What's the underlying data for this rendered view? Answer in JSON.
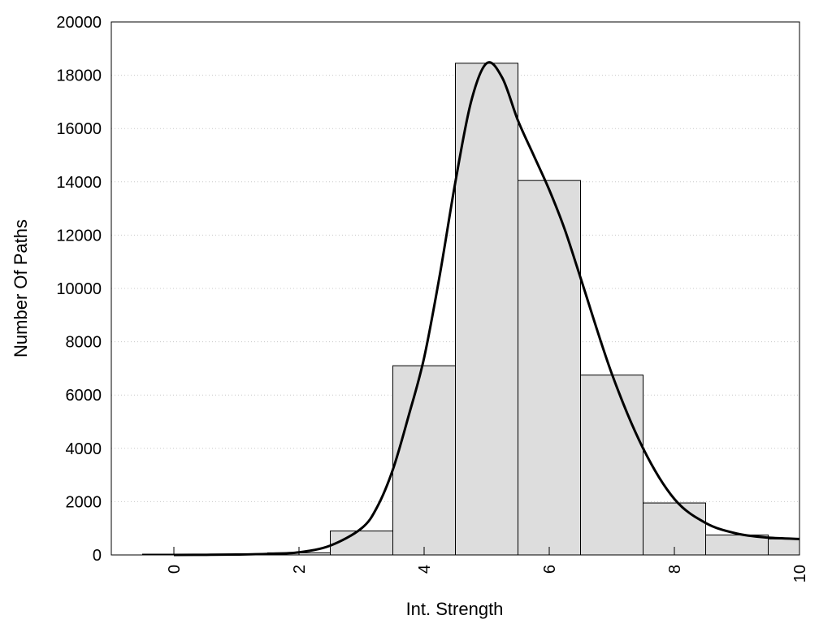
{
  "chart_data": {
    "type": "bar",
    "title": "",
    "xlabel": "Int. Strength",
    "ylabel": "Number Of Paths",
    "xlim": [
      -1,
      10
    ],
    "ylim": [
      0,
      20000
    ],
    "x_ticks": [
      0,
      2,
      4,
      6,
      8,
      10
    ],
    "y_ticks": [
      0,
      2000,
      4000,
      6000,
      8000,
      10000,
      12000,
      14000,
      16000,
      18000,
      20000
    ],
    "grid": "horizontal-dotted",
    "legend": "none",
    "bin_width": 1,
    "bins": [
      {
        "center": 0,
        "value": 30
      },
      {
        "center": 1,
        "value": 30
      },
      {
        "center": 2,
        "value": 80
      },
      {
        "center": 3,
        "value": 900
      },
      {
        "center": 4,
        "value": 7100
      },
      {
        "center": 5,
        "value": 18450
      },
      {
        "center": 6,
        "value": 14050
      },
      {
        "center": 7,
        "value": 6750
      },
      {
        "center": 8,
        "value": 1950
      },
      {
        "center": 9,
        "value": 750
      },
      {
        "center": 10,
        "value": 600
      }
    ],
    "curve": {
      "x": [
        0,
        0.5,
        1,
        1.5,
        2,
        2.5,
        3,
        3.25,
        3.5,
        3.75,
        4,
        4.25,
        4.5,
        4.75,
        5,
        5.25,
        5.5,
        5.75,
        6,
        6.25,
        6.5,
        7,
        7.5,
        8,
        8.5,
        9,
        9.5,
        10
      ],
      "y": [
        0,
        5,
        15,
        40,
        100,
        350,
        1000,
        1800,
        3200,
        5200,
        7400,
        10500,
        14000,
        17000,
        18450,
        17900,
        16300,
        15000,
        13700,
        12200,
        10400,
        6800,
        4000,
        2100,
        1200,
        800,
        650,
        600
      ]
    },
    "colors": {
      "bar_fill": "#dddddd",
      "bar_stroke": "#000000",
      "curve": "#000000",
      "grid": "#c8c8c8"
    }
  }
}
